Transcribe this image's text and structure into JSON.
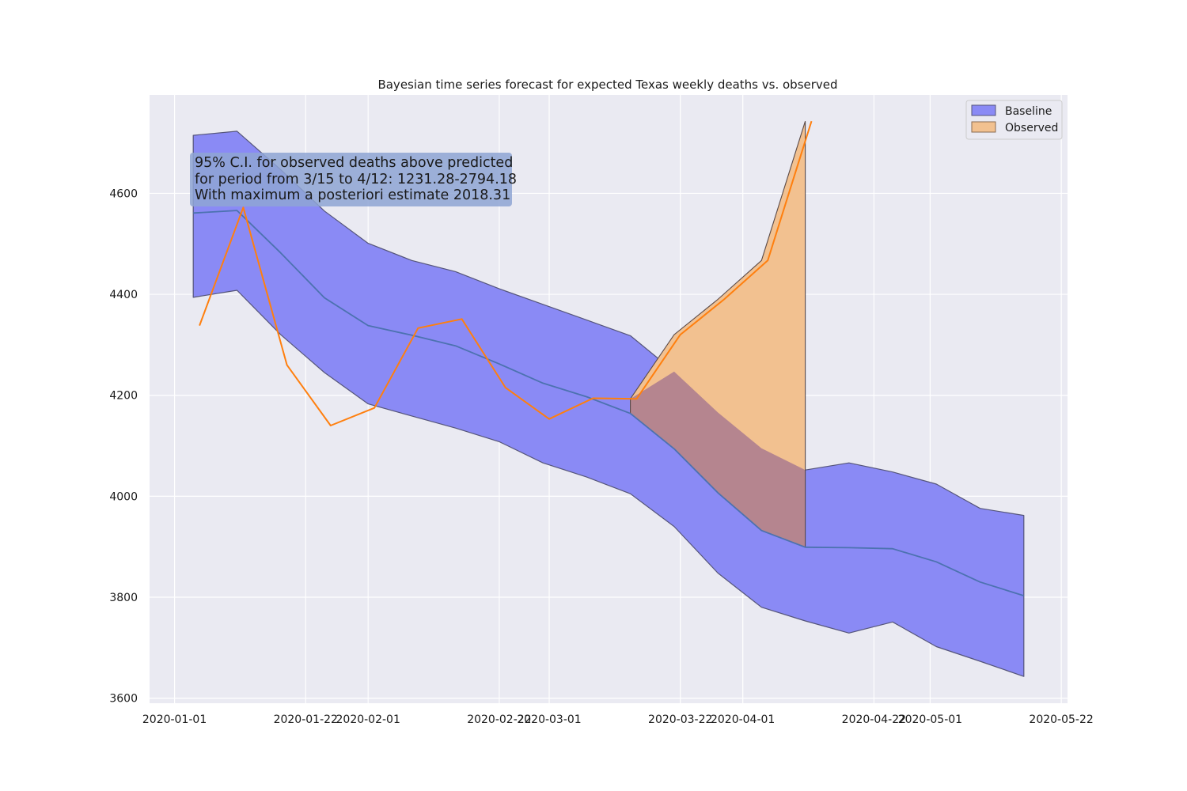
{
  "chart_data": {
    "type": "area",
    "title": "Bayesian time series forecast for expected Texas weekly deaths vs. observed",
    "xlabel": "",
    "ylabel": "",
    "x_ticks": [
      "2020-01-01",
      "2020-01-22",
      "2020-02-01",
      "2020-02-22",
      "2020-03-01",
      "2020-03-22",
      "2020-04-01",
      "2020-04-22",
      "2020-05-01",
      "2020-05-22"
    ],
    "y_ticks": [
      3600,
      3800,
      4000,
      4200,
      4400,
      4600
    ],
    "xlim": [
      "2019-12-28",
      "2020-05-23"
    ],
    "ylim": [
      3590,
      4795
    ],
    "grid": true,
    "legend_position": "top-right",
    "colors": {
      "plot_background": "#eaeaf2",
      "baseline_fill": "#8a8af5",
      "baseline_line": "#4c72b0",
      "band_edge": "#55557a",
      "observed_fill": "#f2c190",
      "excess_overlap_fill": "#b5858f",
      "observed_line": "#ff7f0e"
    },
    "legend": [
      {
        "key": "baseline",
        "label": "Baseline"
      },
      {
        "key": "observed",
        "label": "Observed"
      }
    ],
    "annotation": {
      "lines": [
        "95% C.I. for observed deaths above predicted",
        "for period from 3/15 to 4/12: 1231.28-2794.18",
        "With maximum a posteriori estimate 2018.31"
      ]
    },
    "series": [
      {
        "name": "Baseline",
        "type": "band",
        "x": [
          "2020-01-04",
          "2020-01-11",
          "2020-01-18",
          "2020-01-25",
          "2020-02-01",
          "2020-02-08",
          "2020-02-15",
          "2020-02-22",
          "2020-02-29",
          "2020-03-07",
          "2020-03-14",
          "2020-03-21",
          "2020-03-28",
          "2020-04-04",
          "2020-04-11",
          "2020-04-18",
          "2020-04-25",
          "2020-05-02",
          "2020-05-09",
          "2020-05-16"
        ],
        "mid": [
          4561,
          4566,
          4482,
          4393,
          4338,
          4319,
          4298,
          4262,
          4224,
          4197,
          4164,
          4094,
          4007,
          3932,
          3899,
          3898,
          3896,
          3870,
          3830,
          3803
        ],
        "lower": [
          4394,
          4408,
          4320,
          4245,
          4183,
          4159,
          4135,
          4108,
          4066,
          4038,
          4005,
          3940,
          3848,
          3780,
          3753,
          3729,
          3751,
          3702,
          3673,
          3643
        ],
        "upper": [
          4715,
          4723,
          4647,
          4565,
          4501,
          4467,
          4445,
          4411,
          4380,
          4349,
          4318,
          4247,
          4166,
          4095,
          4052,
          4066,
          4048,
          4024,
          3976,
          3962
        ]
      },
      {
        "name": "Observed",
        "type": "line",
        "x": [
          "2020-01-05",
          "2020-01-12",
          "2020-01-19",
          "2020-01-26",
          "2020-02-02",
          "2020-02-09",
          "2020-02-16",
          "2020-02-23",
          "2020-03-01",
          "2020-03-08",
          "2020-03-15",
          "2020-03-22",
          "2020-03-29",
          "2020-04-05",
          "2020-04-12"
        ],
        "y": [
          4338,
          4572,
          4260,
          4140,
          4175,
          4333,
          4351,
          4215,
          4153,
          4194,
          4193,
          4320,
          4390,
          4467,
          4743
        ]
      },
      {
        "name": "Observed",
        "type": "excess_area",
        "x": [
          "2020-03-14",
          "2020-03-21",
          "2020-03-28",
          "2020-04-04",
          "2020-04-11"
        ],
        "top": [
          4193,
          4320,
          4390,
          4467,
          4743
        ],
        "bottom": [
          4164,
          4094,
          4007,
          3932,
          3899
        ]
      }
    ]
  }
}
